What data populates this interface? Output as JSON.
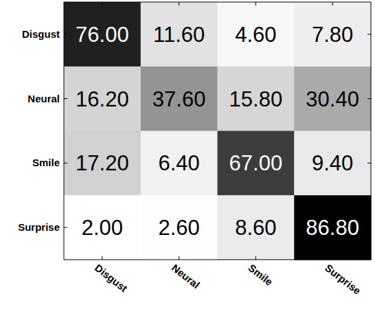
{
  "chart_data": {
    "type": "heatmap",
    "rows": [
      "Disgust",
      "Neural",
      "Smile",
      "Surprise"
    ],
    "columns": [
      "Disgust",
      "Neural",
      "Smile",
      "Surprise"
    ],
    "values": [
      [
        76.0,
        11.6,
        4.6,
        7.8
      ],
      [
        16.2,
        37.6,
        15.8,
        30.4
      ],
      [
        17.2,
        6.4,
        67.0,
        9.4
      ],
      [
        2.0,
        2.6,
        8.6,
        86.8
      ]
    ],
    "value_labels": [
      [
        "76.00",
        "11.60",
        "4.60",
        "7.80"
      ],
      [
        "16.20",
        "37.60",
        "15.80",
        "30.40"
      ],
      [
        "17.20",
        "6.40",
        "67.00",
        "9.40"
      ],
      [
        "2.00",
        "2.60",
        "8.60",
        "86.80"
      ]
    ],
    "color": "gray",
    "data_labels": true
  }
}
